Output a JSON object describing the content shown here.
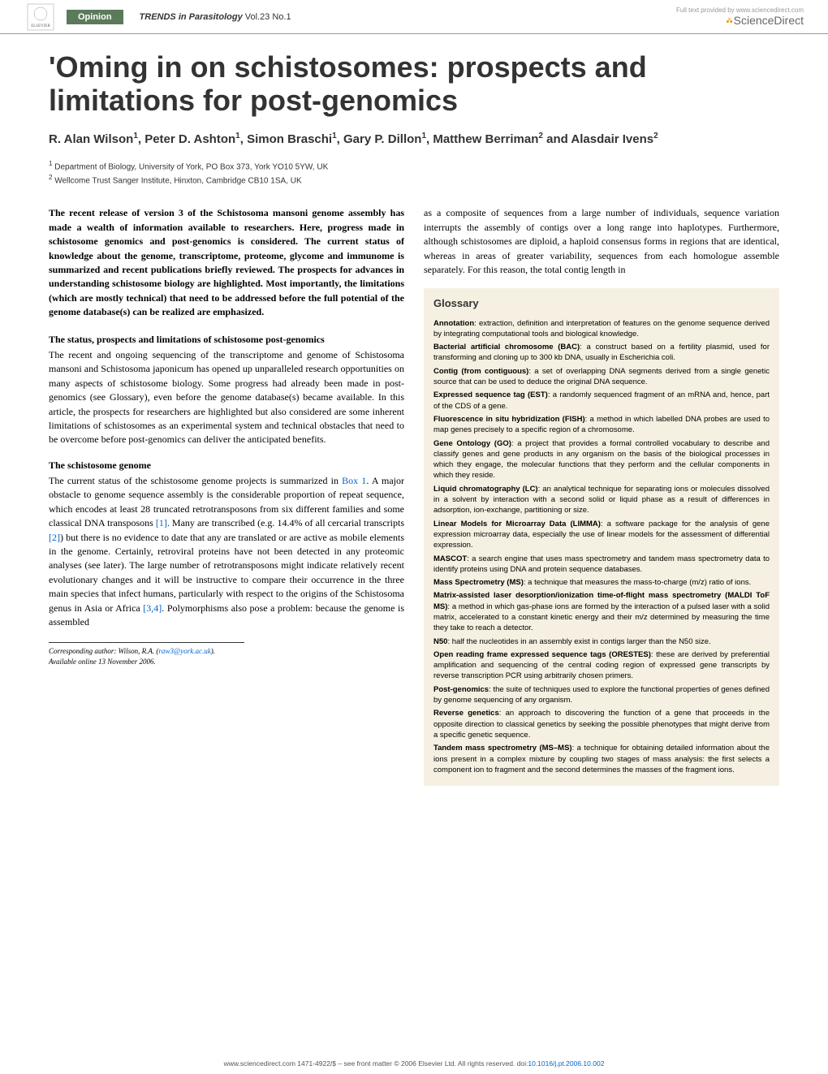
{
  "header": {
    "badge": "Opinion",
    "journal": "TRENDS in Parasitology",
    "volume": "Vol.23 No.1",
    "provider_small": "Full text provided by www.sciencedirect.com",
    "provider": "ScienceDirect"
  },
  "title": "'Oming in on schistosomes: prospects and limitations for post-genomics",
  "authors_line1": "R. Alan Wilson",
  "authors_sup1": "1",
  "authors_mid1": ", Peter D. Ashton",
  "authors_sup2": "1",
  "authors_mid2": ", Simon Braschi",
  "authors_sup3": "1",
  "authors_mid3": ", Gary P. Dillon",
  "authors_sup4": "1",
  "authors_mid4": ", Matthew Berriman",
  "authors_sup5": "2",
  "authors_mid5": " and Alasdair Ivens",
  "authors_sup6": "2",
  "affil1_sup": "1",
  "affil1": " Department of Biology, University of York, PO Box 373, York YO10 5YW, UK",
  "affil2_sup": "2",
  "affil2": " Wellcome Trust Sanger Institute, Hinxton, Cambridge CB10 1SA, UK",
  "abstract": "The recent release of version 3 of the Schistosoma mansoni genome assembly has made a wealth of information available to researchers. Here, progress made in schistosome genomics and post-genomics is considered. The current status of knowledge about the genome, transcriptome, proteome, glycome and immunome is summarized and recent publications briefly reviewed. The prospects for advances in understanding schistosome biology are highlighted. Most importantly, the limitations (which are mostly technical) that need to be addressed before the full potential of the genome database(s) can be realized are emphasized.",
  "section1_heading": "The status, prospects and limitations of schistosome post-genomics",
  "section1_body": "The recent and ongoing sequencing of the transcriptome and genome of Schistosoma mansoni and Schistosoma japonicum has opened up unparalleled research opportunities on many aspects of schistosome biology. Some progress had already been made in post-genomics (see Glossary), even before the genome database(s) became available. In this article, the prospects for researchers are highlighted but also considered are some inherent limitations of schistosomes as an experimental system and technical obstacles that need to be overcome before post-genomics can deliver the anticipated benefits.",
  "section2_heading": "The schistosome genome",
  "section2_body_1": "The current status of the schistosome genome projects is summarized in ",
  "section2_box": "Box 1",
  "section2_body_2": ". A major obstacle to genome sequence assembly is the considerable proportion of repeat sequence, which encodes at least 28 truncated retrotransposons from six different families and some classical DNA transposons ",
  "section2_ref1": "[1]",
  "section2_body_3": ". Many are transcribed (e.g. 14.4% of all cercarial transcripts ",
  "section2_ref2": "[2]",
  "section2_body_4": ") but there is no evidence to date that any are translated or are active as mobile elements in the genome. Certainly, retroviral proteins have not been detected in any proteomic analyses (see later). The large number of retrotransposons might indicate relatively recent evolutionary changes and it will be instructive to compare their occurrence in the three main species that infect humans, particularly with respect to the origins of the Schistosoma genus in Asia or Africa ",
  "section2_ref3": "[3,4]",
  "section2_body_5": ". Polymorphisms also pose a problem: because the genome is assembled",
  "col2_body": "as a composite of sequences from a large number of individuals, sequence variation interrupts the assembly of contigs over a long range into haplotypes. Furthermore, although schistosomes are diploid, a haploid consensus forms in regions that are identical, whereas in areas of greater variability, sequences from each homologue assemble separately. For this reason, the total contig length in",
  "glossary_title": "Glossary",
  "glossary": [
    {
      "term": "Annotation",
      "def": ": extraction, definition and interpretation of features on the genome sequence derived by integrating computational tools and biological knowledge."
    },
    {
      "term": "Bacterial artificial chromosome (BAC)",
      "def": ": a construct based on a fertility plasmid, used for transforming and cloning up to 300 kb DNA, usually in Escherichia coli."
    },
    {
      "term": "Contig (from contiguous)",
      "def": ": a set of overlapping DNA segments derived from a single genetic source that can be used to deduce the original DNA sequence."
    },
    {
      "term": "Expressed sequence tag (EST)",
      "def": ": a randomly sequenced fragment of an mRNA and, hence, part of the CDS of a gene."
    },
    {
      "term": "Fluorescence in situ hybridization (FISH)",
      "def": ": a method in which labelled DNA probes are used to map genes precisely to a specific region of a chromosome."
    },
    {
      "term": "Gene Ontology (GO)",
      "def": ": a project that provides a formal controlled vocabulary to describe and classify genes and gene products in any organism on the basis of the biological processes in which they engage, the molecular functions that they perform and the cellular components in which they reside."
    },
    {
      "term": "Liquid chromatography (LC)",
      "def": ": an analytical technique for separating ions or molecules dissolved in a solvent by interaction with a second solid or liquid phase as a result of differences in adsorption, ion-exchange, partitioning or size."
    },
    {
      "term": "Linear Models for Microarray Data (LIMMA)",
      "def": ": a software package for the analysis of gene expression microarray data, especially the use of linear models for the assessment of differential expression."
    },
    {
      "term": "MASCOT",
      "def": ": a search engine that uses mass spectrometry and tandem mass spectrometry data to identify proteins using DNA and protein sequence databases."
    },
    {
      "term": "Mass Spectrometry (MS)",
      "def": ": a technique that measures the mass-to-charge (m/z) ratio of ions."
    },
    {
      "term": "Matrix-assisted laser desorption/ionization time-of-flight mass spectrometry (MALDI ToF MS)",
      "def": ": a method in which gas-phase ions are formed by the interaction of a pulsed laser with a solid matrix, accelerated to a constant kinetic energy and their m/z determined by measuring the time they take to reach a detector."
    },
    {
      "term": "N50",
      "def": ": half the nucleotides in an assembly exist in contigs larger than the N50 size."
    },
    {
      "term": "Open reading frame expressed sequence tags (ORESTES)",
      "def": ": these are derived by preferential amplification and sequencing of the central coding region of expressed gene transcripts by reverse transcription PCR using arbitrarily chosen primers."
    },
    {
      "term": "Post-genomics",
      "def": ": the suite of techniques used to explore the functional properties of genes defined by genome sequencing of any organism."
    },
    {
      "term": "Reverse genetics",
      "def": ": an approach to discovering the function of a gene that proceeds in the opposite direction to classical genetics by seeking the possible phenotypes that might derive from a specific genetic sequence."
    },
    {
      "term": "Tandem mass spectrometry (MS–MS)",
      "def": ": a technique for obtaining detailed information about the ions present in a complex mixture by coupling two stages of mass analysis: the first selects a component ion to fragment and the second determines the masses of the fragment ions."
    }
  ],
  "corresponding_label": "Corresponding author:",
  "corresponding_name": " Wilson, R.A. (",
  "corresponding_email": "raw3@york.ac.uk",
  "corresponding_close": ").",
  "available": "Available online 13 November 2006.",
  "footer_text": "www.sciencedirect.com   1471-4922/$ – see front matter © 2006 Elsevier Ltd. All rights reserved. doi:",
  "footer_doi": "10.1016/j.pt.2006.10.002"
}
